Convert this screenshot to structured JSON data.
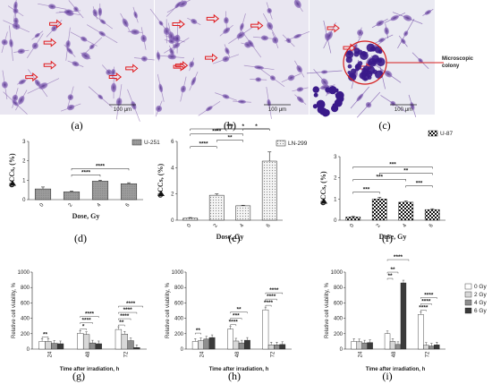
{
  "figure": {
    "panel_letters": [
      "(a)",
      "(b)",
      "(c)",
      "(d)",
      "(e)",
      "(f)",
      "(g)",
      "(h)",
      "(i)"
    ],
    "micrographs": [
      {
        "scale_label": "100 μm",
        "background": "#e9e6f1",
        "cell_color": "#7d58a8"
      },
      {
        "scale_label": "100 μm",
        "background": "#e9e6f1",
        "cell_color": "#7d58a8"
      },
      {
        "scale_label": "100 μm",
        "background": "#eaeaf2",
        "cell_color": "#5b2f98",
        "annotation": "Microscopic colony"
      }
    ],
    "colors": {
      "arrow": "#e0191c",
      "colony": "#3a1a8a",
      "circle": "#d61d1d"
    }
  },
  "chart_data": [
    {
      "type": "bar",
      "panel": "(d)",
      "categories": [
        "0",
        "2",
        "4",
        "6"
      ],
      "values": [
        0.55,
        0.4,
        0.95,
        0.82
      ],
      "errors": [
        0.1,
        0.04,
        0.05,
        0.05
      ],
      "xlabel": "Dose, Gy",
      "ylabel": "GCCs, (%)",
      "ylim": [
        0,
        3
      ],
      "yticks": [
        0,
        1,
        2,
        3
      ],
      "legend": "U-251",
      "fill": "gray",
      "significance": [
        {
          "from": "2",
          "to": "4",
          "label": "****"
        },
        {
          "from": "2",
          "to": "6",
          "label": "****"
        }
      ]
    },
    {
      "type": "bar",
      "panel": "(e)",
      "categories": [
        "0",
        "2",
        "4",
        "6"
      ],
      "values": [
        0.15,
        1.9,
        1.1,
        4.5
      ],
      "errors": [
        0.05,
        0.1,
        0.04,
        0.7
      ],
      "xlabel": "Dose, Gy",
      "ylabel": "GCCs, (%)",
      "ylim": [
        0,
        6
      ],
      "yticks": [
        0,
        2,
        4,
        6
      ],
      "legend": "LN-299",
      "fill": "dots",
      "significance": [
        {
          "from": "0",
          "to": "2",
          "label": "****"
        },
        {
          "from": "2",
          "to": "4",
          "label": "**"
        },
        {
          "from": "0",
          "to": "4",
          "label": "****"
        },
        {
          "from": "4",
          "to": "6",
          "label": "*"
        },
        {
          "from": "2",
          "to": "6",
          "label": "*"
        },
        {
          "from": "0",
          "to": "6",
          "label": "***"
        }
      ]
    },
    {
      "type": "bar",
      "panel": "(f)",
      "categories": [
        "0",
        "2",
        "4",
        "6"
      ],
      "values": [
        0.15,
        1.0,
        0.85,
        0.5
      ],
      "errors": [
        0.03,
        0.08,
        0.06,
        0.04
      ],
      "xlabel": "Dose, Gy",
      "ylabel": "GCCs, (%)",
      "ylim": [
        0,
        3
      ],
      "yticks": [
        0,
        1,
        2,
        3
      ],
      "legend": "U-87",
      "fill": "checker",
      "significance": [
        {
          "from": "0",
          "to": "2",
          "label": "***"
        },
        {
          "from": "4",
          "to": "6",
          "label": "***"
        },
        {
          "from": "0",
          "to": "4",
          "label": "***"
        },
        {
          "from": "2",
          "to": "6",
          "label": "**"
        },
        {
          "from": "0",
          "to": "6",
          "label": "***"
        }
      ]
    },
    {
      "type": "grouped_bar",
      "panel": "(g)",
      "categories": [
        "24",
        "48",
        "72"
      ],
      "ylabel": "Relative cell viability, %",
      "xlabel": "Time after irradiation, h",
      "ylim": [
        0,
        1000
      ],
      "yticks": [
        0,
        200,
        400,
        600,
        800,
        1000
      ],
      "series": [
        {
          "name": "0 Gy",
          "values": [
            100,
            205,
            255
          ]
        },
        {
          "name": "2 Gy",
          "values": [
            100,
            190,
            195
          ]
        },
        {
          "name": "4 Gy",
          "values": [
            75,
            80,
            110
          ]
        },
        {
          "name": "6 Gy",
          "values": [
            70,
            70,
            20
          ]
        }
      ],
      "significance": [
        {
          "group": 0,
          "level": 1,
          "label": "**"
        },
        {
          "group": 1,
          "level": 1,
          "label": "*"
        },
        {
          "group": 1,
          "level": 2,
          "label": "****"
        },
        {
          "group": 1,
          "level": 3,
          "label": "****"
        },
        {
          "group": 2,
          "level": 1,
          "label": "**"
        },
        {
          "group": 2,
          "level": 2,
          "label": "****"
        },
        {
          "group": 2,
          "level": 3,
          "label": "****"
        },
        {
          "group": 2,
          "level": 4,
          "label": "****"
        }
      ]
    },
    {
      "type": "grouped_bar",
      "panel": "(h)",
      "categories": [
        "24",
        "48",
        "72"
      ],
      "ylabel": "Relative cell viability, %",
      "xlabel": "Time after irradiation, h",
      "ylim": [
        0,
        1000
      ],
      "yticks": [
        0,
        200,
        400,
        600,
        800,
        1000
      ],
      "series": [
        {
          "name": "0 Gy",
          "values": [
            100,
            260,
            510
          ]
        },
        {
          "name": "2 Gy",
          "values": [
            110,
            105,
            55
          ]
        },
        {
          "name": "4 Gy",
          "values": [
            130,
            80,
            55
          ]
        },
        {
          "name": "6 Gy",
          "values": [
            150,
            115,
            60
          ]
        }
      ],
      "significance": [
        {
          "group": 0,
          "level": 1,
          "label": "**"
        },
        {
          "group": 1,
          "level": 1,
          "label": "****"
        },
        {
          "group": 1,
          "level": 2,
          "label": "***"
        },
        {
          "group": 1,
          "level": 3,
          "label": "**"
        },
        {
          "group": 2,
          "level": 1,
          "label": "****"
        },
        {
          "group": 2,
          "level": 2,
          "label": "****"
        },
        {
          "group": 2,
          "level": 3,
          "label": "****"
        }
      ]
    },
    {
      "type": "grouped_bar",
      "panel": "(i)",
      "categories": [
        "24",
        "48",
        "72"
      ],
      "ylabel": "Relative cell viability, %",
      "xlabel": "Time after irradiation, h",
      "ylim": [
        0,
        1000
      ],
      "yticks": [
        0,
        200,
        400,
        600,
        800,
        1000
      ],
      "series": [
        {
          "name": "0 Gy",
          "values": [
            100,
            200,
            450
          ]
        },
        {
          "name": "2 Gy",
          "values": [
            95,
            100,
            50
          ]
        },
        {
          "name": "4 Gy",
          "values": [
            80,
            60,
            40
          ]
        },
        {
          "name": "6 Gy",
          "values": [
            85,
            860,
            55
          ]
        }
      ],
      "significance": [
        {
          "group": 1,
          "level": 1,
          "label": "**"
        },
        {
          "group": 1,
          "level": 2,
          "label": "**"
        },
        {
          "group": 1,
          "level": 4,
          "label": "****"
        },
        {
          "group": 2,
          "level": 1,
          "label": "****"
        },
        {
          "group": 2,
          "level": 2,
          "label": "****"
        },
        {
          "group": 2,
          "level": 3,
          "label": "****"
        }
      ],
      "legend": [
        "0 Gy",
        "2 Gy",
        "4 Gy",
        "6 Gy"
      ]
    }
  ]
}
